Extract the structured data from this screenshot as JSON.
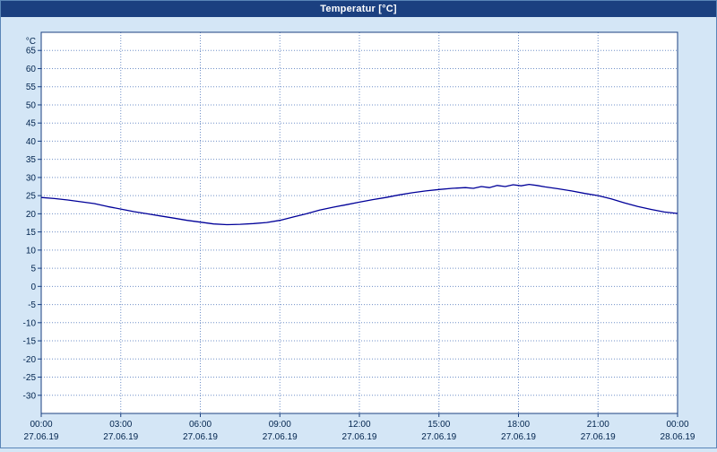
{
  "window": {
    "title": "Temperatur [°C]"
  },
  "chart_data": {
    "type": "line",
    "title": "Temperatur [°C]",
    "xlabel": "",
    "ylabel": "°C",
    "ylim": [
      -35,
      70
    ],
    "ytick_step": 5,
    "yticks": [
      65,
      60,
      55,
      50,
      45,
      40,
      35,
      30,
      25,
      20,
      15,
      10,
      5,
      0,
      -5,
      -10,
      -15,
      -20,
      -25,
      -25,
      -30
    ],
    "grid": true,
    "legend": "none",
    "series_name": "Temperatur",
    "x": [
      0,
      0.5,
      1,
      1.5,
      2,
      2.5,
      3,
      3.5,
      4,
      4.5,
      5,
      5.5,
      6,
      6.5,
      7,
      7.5,
      8,
      8.5,
      9,
      9.5,
      10,
      10.5,
      11,
      11.5,
      12,
      12.5,
      13,
      13.5,
      14,
      14.5,
      15,
      15.5,
      16,
      16.3,
      16.6,
      16.9,
      17.2,
      17.5,
      17.8,
      18.1,
      18.4,
      18.7,
      19,
      19.5,
      20,
      20.5,
      21,
      21.5,
      22,
      22.5,
      23,
      23.5,
      24
    ],
    "values": [
      24.5,
      24.2,
      23.8,
      23.3,
      22.8,
      22.0,
      21.3,
      20.6,
      20.0,
      19.4,
      18.8,
      18.2,
      17.7,
      17.2,
      17.0,
      17.1,
      17.3,
      17.6,
      18.2,
      19.1,
      20.0,
      21.0,
      21.8,
      22.5,
      23.2,
      23.9,
      24.5,
      25.2,
      25.8,
      26.3,
      26.7,
      27.0,
      27.2,
      27.0,
      27.5,
      27.2,
      27.8,
      27.5,
      28.0,
      27.7,
      28.1,
      27.8,
      27.4,
      26.9,
      26.3,
      25.6,
      25.0,
      24.1,
      23.0,
      22.0,
      21.2,
      20.5,
      20.1
    ],
    "xticks": [
      {
        "time": "00:00",
        "date": "27.06.19"
      },
      {
        "time": "03:00",
        "date": "27.06.19"
      },
      {
        "time": "06:00",
        "date": "27.06.19"
      },
      {
        "time": "09:00",
        "date": "27.06.19"
      },
      {
        "time": "12:00",
        "date": "27.06.19"
      },
      {
        "time": "15:00",
        "date": "27.06.19"
      },
      {
        "time": "18:00",
        "date": "27.06.19"
      },
      {
        "time": "21:00",
        "date": "27.06.19"
      },
      {
        "time": "00:00",
        "date": "28.06.19"
      }
    ],
    "line_color": "#000099",
    "grid_color": "#7090c8",
    "axis_color": "#1b4080",
    "text_color": "#00234d",
    "plot_bg": "#ffffff",
    "window_bg": "#d4e6f6",
    "titlebar_color": "#1b4080"
  }
}
